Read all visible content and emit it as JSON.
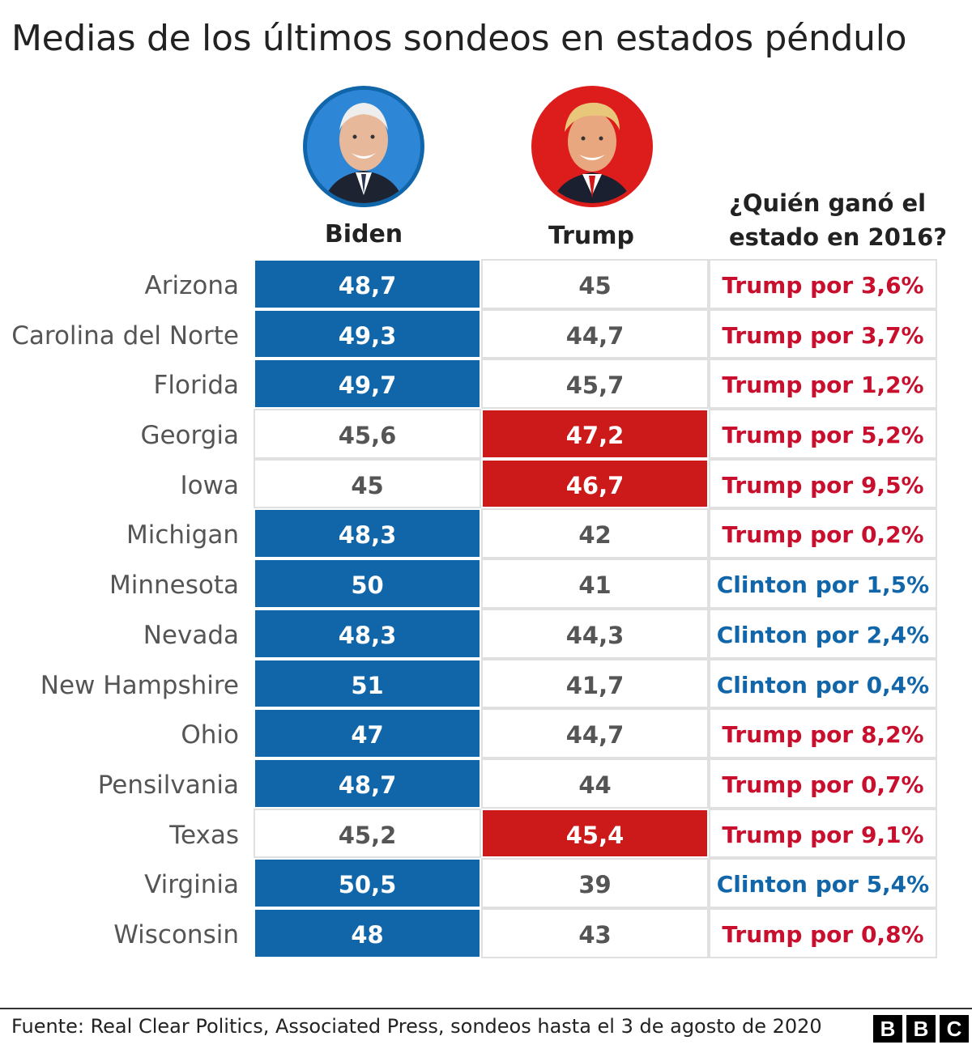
{
  "title": "Medias de los últimos sondeos en estados péndulo",
  "candidates": {
    "biden": {
      "name": "Biden",
      "ring_color": "#1166aa"
    },
    "trump": {
      "name": "Trump",
      "ring_color": "#dd1c1c"
    }
  },
  "won_header": "¿Quién ganó el\nestado en 2016?",
  "colors": {
    "biden_blue": "#1166aa",
    "trump_red": "#cc1a1a",
    "trump_text": "#c8102e",
    "clinton_text": "#1166aa"
  },
  "chart_data": {
    "type": "table",
    "columns": [
      "Biden",
      "Trump",
      "¿Quién ganó el estado en 2016?"
    ],
    "rows": [
      {
        "state": "Arizona",
        "biden": "48,7",
        "trump": "45",
        "leader": "biden",
        "won": "Trump por 3,6%",
        "won_party": "trump"
      },
      {
        "state": "Carolina del Norte",
        "biden": "49,3",
        "trump": "44,7",
        "leader": "biden",
        "won": "Trump por 3,7%",
        "won_party": "trump"
      },
      {
        "state": "Florida",
        "biden": "49,7",
        "trump": "45,7",
        "leader": "biden",
        "won": "Trump por 1,2%",
        "won_party": "trump"
      },
      {
        "state": "Georgia",
        "biden": "45,6",
        "trump": "47,2",
        "leader": "trump",
        "won": "Trump por 5,2%",
        "won_party": "trump"
      },
      {
        "state": "Iowa",
        "biden": "45",
        "trump": "46,7",
        "leader": "trump",
        "won": "Trump por 9,5%",
        "won_party": "trump"
      },
      {
        "state": "Michigan",
        "biden": "48,3",
        "trump": "42",
        "leader": "biden",
        "won": "Trump por 0,2%",
        "won_party": "trump"
      },
      {
        "state": "Minnesota",
        "biden": "50",
        "trump": "41",
        "leader": "biden",
        "won": "Clinton por 1,5%",
        "won_party": "clinton"
      },
      {
        "state": "Nevada",
        "biden": "48,3",
        "trump": "44,3",
        "leader": "biden",
        "won": "Clinton por 2,4%",
        "won_party": "clinton"
      },
      {
        "state": "New Hampshire",
        "biden": "51",
        "trump": "41,7",
        "leader": "biden",
        "won": "Clinton por 0,4%",
        "won_party": "clinton"
      },
      {
        "state": "Ohio",
        "biden": "47",
        "trump": "44,7",
        "leader": "biden",
        "won": "Trump por 8,2%",
        "won_party": "trump"
      },
      {
        "state": "Pensilvania",
        "biden": "48,7",
        "trump": "44",
        "leader": "biden",
        "won": "Trump por 0,7%",
        "won_party": "trump"
      },
      {
        "state": "Texas",
        "biden": "45,2",
        "trump": "45,4",
        "leader": "trump",
        "won": "Trump por 9,1%",
        "won_party": "trump"
      },
      {
        "state": "Virginia",
        "biden": "50,5",
        "trump": "39",
        "leader": "biden",
        "won": "Clinton por 5,4%",
        "won_party": "clinton"
      },
      {
        "state": "Wisconsin",
        "biden": "48",
        "trump": "43",
        "leader": "biden",
        "won": "Trump por 0,8%",
        "won_party": "trump"
      }
    ]
  },
  "source": "Fuente: Real Clear Politics, Associated Press, sondeos hasta el 3 de agosto de 2020",
  "logo": [
    "B",
    "B",
    "C"
  ]
}
